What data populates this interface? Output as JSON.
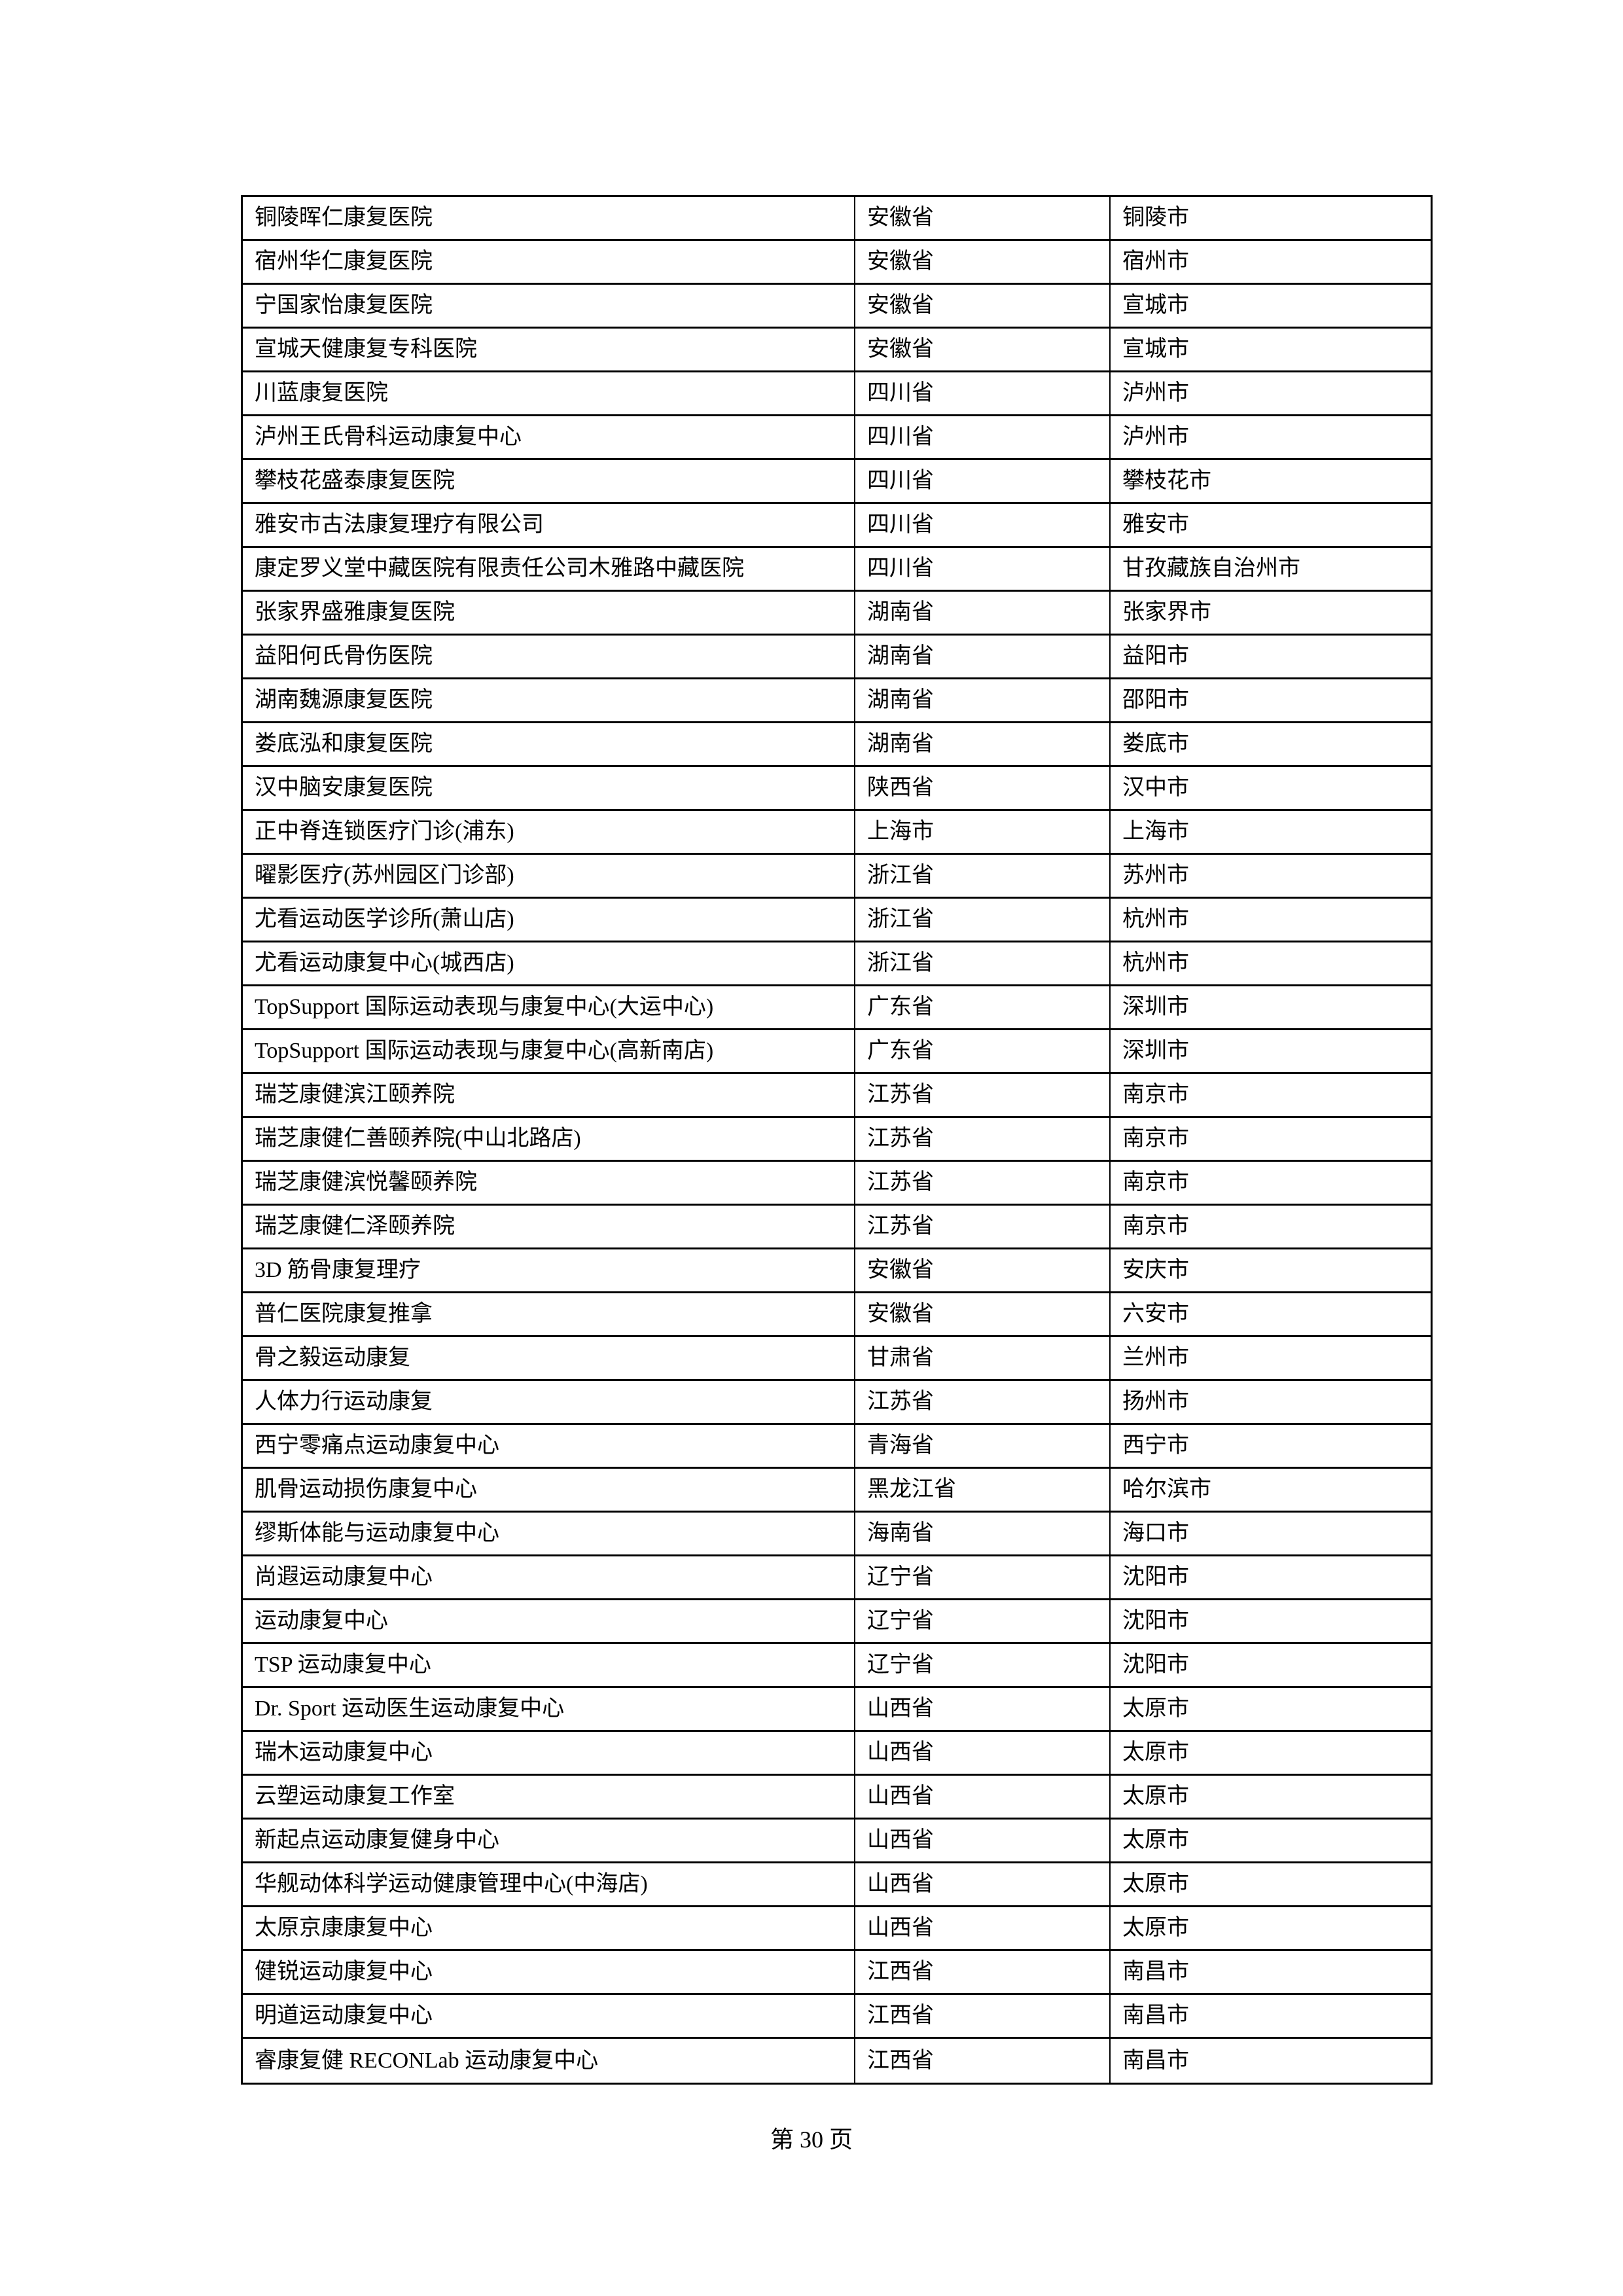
{
  "page": {
    "footer": "第 30 页"
  },
  "table": {
    "rows": [
      {
        "name": "铜陵晖仁康复医院",
        "province": "安徽省",
        "city": "铜陵市"
      },
      {
        "name": "宿州华仁康复医院",
        "province": "安徽省",
        "city": "宿州市"
      },
      {
        "name": "宁国家怡康复医院",
        "province": "安徽省",
        "city": "宣城市"
      },
      {
        "name": "宣城天健康复专科医院",
        "province": "安徽省",
        "city": "宣城市"
      },
      {
        "name": "川蓝康复医院",
        "province": "四川省",
        "city": "泸州市"
      },
      {
        "name": "泸州王氏骨科运动康复中心",
        "province": "四川省",
        "city": "泸州市"
      },
      {
        "name": "攀枝花盛泰康复医院",
        "province": "四川省",
        "city": "攀枝花市"
      },
      {
        "name": "雅安市古法康复理疗有限公司",
        "province": "四川省",
        "city": "雅安市"
      },
      {
        "name": "康定罗义堂中藏医院有限责任公司木雅路中藏医院",
        "province": "四川省",
        "city": "甘孜藏族自治州市"
      },
      {
        "name": "张家界盛雅康复医院",
        "province": "湖南省",
        "city": "张家界市"
      },
      {
        "name": "益阳何氏骨伤医院",
        "province": "湖南省",
        "city": "益阳市"
      },
      {
        "name": "湖南魏源康复医院",
        "province": "湖南省",
        "city": "邵阳市"
      },
      {
        "name": "娄底泓和康复医院",
        "province": "湖南省",
        "city": "娄底市"
      },
      {
        "name": "汉中脑安康复医院",
        "province": "陕西省",
        "city": "汉中市"
      },
      {
        "name": "正中脊连锁医疗门诊(浦东)",
        "province": "上海市",
        "city": "上海市"
      },
      {
        "name": "曜影医疗(苏州园区门诊部)",
        "province": "浙江省",
        "city": "苏州市"
      },
      {
        "name": "尤看运动医学诊所(萧山店)",
        "province": "浙江省",
        "city": "杭州市"
      },
      {
        "name": "尤看运动康复中心(城西店)",
        "province": "浙江省",
        "city": "杭州市"
      },
      {
        "name": "TopSupport 国际运动表现与康复中心(大运中心)",
        "province": "广东省",
        "city": "深圳市"
      },
      {
        "name": "TopSupport 国际运动表现与康复中心(高新南店)",
        "province": "广东省",
        "city": "深圳市"
      },
      {
        "name": "瑞芝康健滨江颐养院",
        "province": "江苏省",
        "city": "南京市"
      },
      {
        "name": "瑞芝康健仁善颐养院(中山北路店)",
        "province": "江苏省",
        "city": "南京市"
      },
      {
        "name": "瑞芝康健滨悦馨颐养院",
        "province": "江苏省",
        "city": "南京市"
      },
      {
        "name": "瑞芝康健仁泽颐养院",
        "province": "江苏省",
        "city": "南京市"
      },
      {
        "name": "3D 筋骨康复理疗",
        "province": "安徽省",
        "city": "安庆市"
      },
      {
        "name": "普仁医院康复推拿",
        "province": "安徽省",
        "city": "六安市"
      },
      {
        "name": "骨之毅运动康复",
        "province": "甘肃省",
        "city": "兰州市"
      },
      {
        "name": "人体力行运动康复",
        "province": "江苏省",
        "city": "扬州市"
      },
      {
        "name": "西宁零痛点运动康复中心",
        "province": "青海省",
        "city": "西宁市"
      },
      {
        "name": "肌骨运动损伤康复中心",
        "province": "黑龙江省",
        "city": "哈尔滨市"
      },
      {
        "name": "缪斯体能与运动康复中心",
        "province": "海南省",
        "city": "海口市"
      },
      {
        "name": "尚遐运动康复中心",
        "province": "辽宁省",
        "city": "沈阳市"
      },
      {
        "name": "运动康复中心",
        "province": "辽宁省",
        "city": "沈阳市"
      },
      {
        "name": "TSP 运动康复中心",
        "province": "辽宁省",
        "city": "沈阳市"
      },
      {
        "name": "Dr. Sport 运动医生运动康复中心",
        "province": "山西省",
        "city": "太原市"
      },
      {
        "name": "瑞木运动康复中心",
        "province": "山西省",
        "city": "太原市"
      },
      {
        "name": "云塑运动康复工作室",
        "province": "山西省",
        "city": "太原市"
      },
      {
        "name": "新起点运动康复健身中心",
        "province": "山西省",
        "city": "太原市"
      },
      {
        "name": "华舰动体科学运动健康管理中心(中海店)",
        "province": "山西省",
        "city": "太原市"
      },
      {
        "name": "太原京康康复中心",
        "province": "山西省",
        "city": "太原市"
      },
      {
        "name": "健锐运动康复中心",
        "province": "江西省",
        "city": "南昌市"
      },
      {
        "name": "明道运动康复中心",
        "province": "江西省",
        "city": "南昌市"
      },
      {
        "name": "睿康复健 RECONLab 运动康复中心",
        "province": "江西省",
        "city": "南昌市"
      }
    ]
  }
}
